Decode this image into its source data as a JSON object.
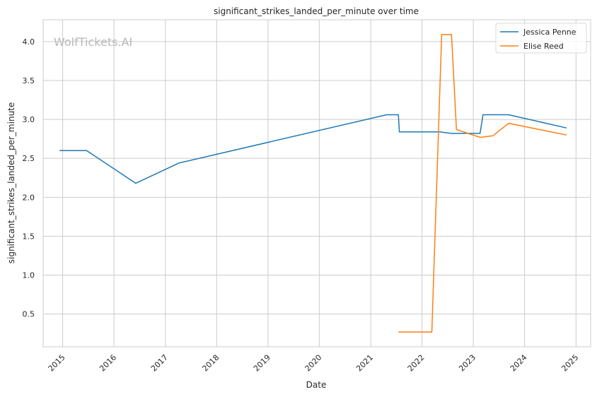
{
  "chart_data": {
    "type": "line",
    "title": "significant_strikes_landed_per_minute over time",
    "xlabel": "Date",
    "ylabel": "significant_strikes_landed_per_minute",
    "watermark": "WolfTickets.AI",
    "x_ticks": [
      "2015",
      "2016",
      "2017",
      "2018",
      "2019",
      "2020",
      "2021",
      "2022",
      "2023",
      "2024",
      "2025"
    ],
    "y_ticks": [
      "0.5",
      "1.0",
      "1.5",
      "2.0",
      "2.5",
      "3.0",
      "3.5",
      "4.0"
    ],
    "xlim": [
      "2014-08-15",
      "2025-04-15"
    ],
    "ylim": [
      0.08,
      4.28
    ],
    "grid": true,
    "legend_position": "top-right",
    "series": [
      {
        "name": "Jessica Penne",
        "color": "#1f77b4",
        "points": [
          [
            "2014-12-10",
            2.6
          ],
          [
            "2015-06-20",
            2.6
          ],
          [
            "2016-06-04",
            2.18
          ],
          [
            "2017-04-08",
            2.44
          ],
          [
            "2021-04-24",
            3.06
          ],
          [
            "2021-07-17",
            3.06
          ],
          [
            "2021-07-24",
            2.84
          ],
          [
            "2022-05-07",
            2.84
          ],
          [
            "2022-07-30",
            2.82
          ],
          [
            "2023-02-18",
            2.82
          ],
          [
            "2023-03-11",
            3.06
          ],
          [
            "2023-09-09",
            3.06
          ],
          [
            "2024-10-26",
            2.89
          ]
        ]
      },
      {
        "name": "Elise Reed",
        "color": "#ff7f0e",
        "points": [
          [
            "2021-07-17",
            0.27
          ],
          [
            "2022-03-12",
            0.27
          ],
          [
            "2022-05-21",
            4.09
          ],
          [
            "2022-07-30",
            4.09
          ],
          [
            "2022-09-03",
            2.87
          ],
          [
            "2023-02-18",
            2.77
          ],
          [
            "2023-05-20",
            2.79
          ],
          [
            "2023-09-09",
            2.95
          ],
          [
            "2024-10-26",
            2.8
          ]
        ]
      }
    ]
  }
}
